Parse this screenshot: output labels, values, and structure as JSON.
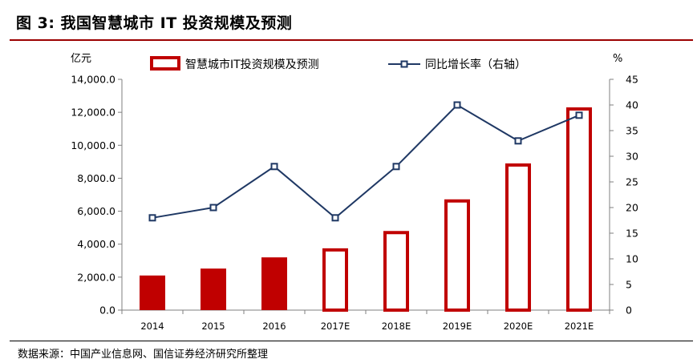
{
  "title": "图 3:  我国智慧城市 IT 投资规模及预测",
  "source": "数据来源：中国产业信息网、国信证券经济研究所整理",
  "colors": {
    "bar": "#c00000",
    "line": "#1f3864",
    "title_rule": "#9b0000"
  },
  "chart_data": {
    "type": "bar",
    "categories": [
      "2014",
      "2015",
      "2016",
      "2017E",
      "2018E",
      "2019E",
      "2020E",
      "2021E"
    ],
    "series": [
      {
        "name": "智慧城市IT投资规模及预测",
        "type": "bar",
        "axis": "left",
        "values": [
          2100,
          2520,
          3200,
          3750,
          4800,
          6720,
          8900,
          12300
        ],
        "filled": [
          true,
          true,
          true,
          false,
          false,
          false,
          false,
          false
        ]
      },
      {
        "name": "同比增长率（右轴）",
        "type": "line",
        "axis": "right",
        "values": [
          18,
          20,
          28,
          18,
          28,
          40,
          33,
          38
        ]
      }
    ],
    "y_left": {
      "unit": "亿元",
      "ylim": [
        0,
        14000
      ],
      "ticks": [
        "0.0",
        "2,000.0",
        "4,000.0",
        "6,000.0",
        "8,000.0",
        "10,000.0",
        "12,000.0",
        "14,000.0"
      ]
    },
    "y_right": {
      "unit": "%",
      "ylim": [
        0,
        45
      ],
      "ticks": [
        "0",
        "5",
        "10",
        "15",
        "20",
        "25",
        "30",
        "35",
        "40",
        "45"
      ]
    },
    "legend_position": "top-center",
    "grid": false
  }
}
